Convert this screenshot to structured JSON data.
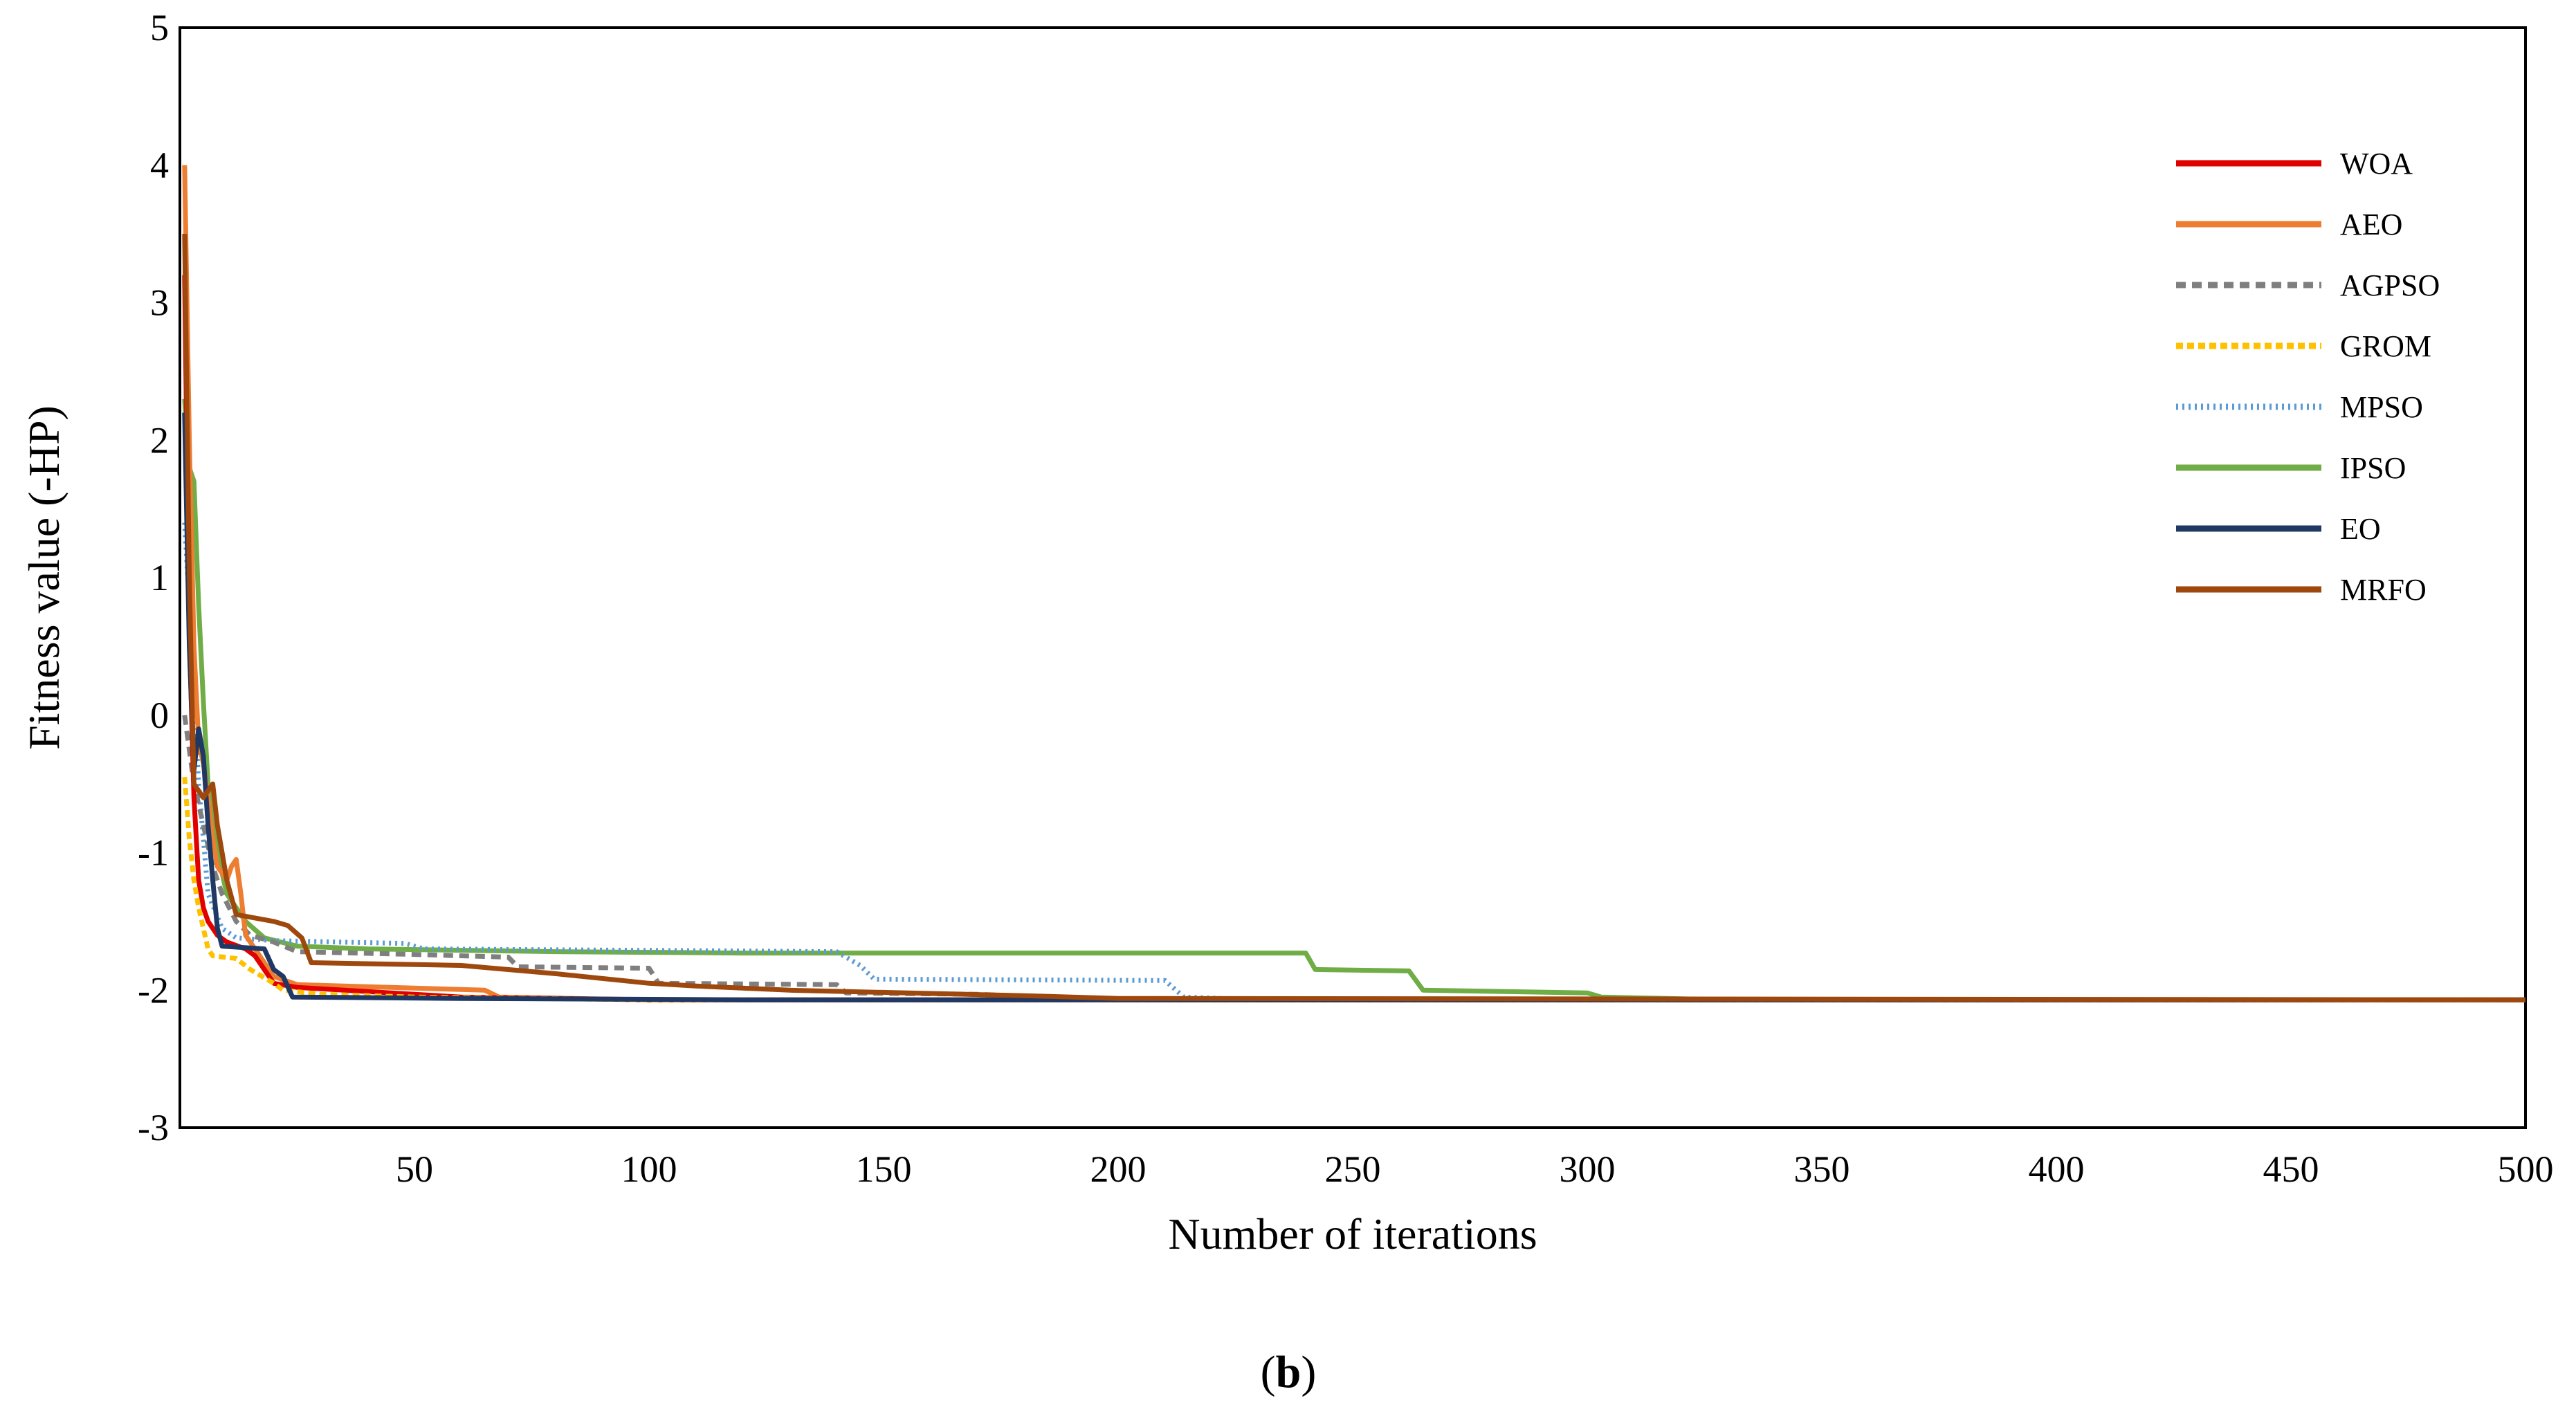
{
  "caption": {
    "open": "(",
    "letter": "b",
    "close": ")"
  },
  "chart_data": {
    "type": "line",
    "title": "",
    "xlabel": "Number of iterations",
    "ylabel": "Fitness value (-HP)",
    "xlim": [
      0,
      500
    ],
    "ylim": [
      -3,
      5
    ],
    "xticks": [
      50,
      100,
      150,
      200,
      250,
      300,
      350,
      400,
      450,
      500
    ],
    "yticks": [
      5,
      4,
      3,
      2,
      1,
      0,
      -1,
      -2,
      -3
    ],
    "grid": false,
    "legend_position": "top-right",
    "series": [
      {
        "name": "WOA",
        "color": "#e00000",
        "dash": "solid",
        "points": [
          [
            1,
            3.2
          ],
          [
            2,
            0.6
          ],
          [
            3,
            -0.6
          ],
          [
            4,
            -1.2
          ],
          [
            5,
            -1.4
          ],
          [
            6,
            -1.5
          ],
          [
            8,
            -1.6
          ],
          [
            10,
            -1.65
          ],
          [
            14,
            -1.7
          ],
          [
            16,
            -1.75
          ],
          [
            18,
            -1.85
          ],
          [
            20,
            -1.95
          ],
          [
            25,
            -1.98
          ],
          [
            35,
            -2.0
          ],
          [
            45,
            -2.02
          ],
          [
            60,
            -2.05
          ],
          [
            100,
            -2.07
          ],
          [
            500,
            -2.07
          ]
        ]
      },
      {
        "name": "AEO",
        "color": "#ed7d31",
        "dash": "solid",
        "points": [
          [
            1,
            4.0
          ],
          [
            2,
            2.0
          ],
          [
            3,
            0.5
          ],
          [
            4,
            -0.2
          ],
          [
            5,
            -0.35
          ],
          [
            6,
            -0.6
          ],
          [
            7,
            -0.9
          ],
          [
            8,
            -1.1
          ],
          [
            9,
            -1.15
          ],
          [
            10,
            -1.2
          ],
          [
            11,
            -1.1
          ],
          [
            12,
            -1.05
          ],
          [
            13,
            -1.3
          ],
          [
            14,
            -1.6
          ],
          [
            16,
            -1.7
          ],
          [
            18,
            -1.8
          ],
          [
            20,
            -1.9
          ],
          [
            25,
            -1.96
          ],
          [
            45,
            -1.98
          ],
          [
            65,
            -2.0
          ],
          [
            68,
            -2.05
          ],
          [
            100,
            -2.07
          ],
          [
            500,
            -2.07
          ]
        ]
      },
      {
        "name": "AGPSO",
        "color": "#7f7f7f",
        "dash": "14,9",
        "points": [
          [
            1,
            0.0
          ],
          [
            3,
            -0.5
          ],
          [
            5,
            -0.8
          ],
          [
            7,
            -1.1
          ],
          [
            9,
            -1.3
          ],
          [
            12,
            -1.5
          ],
          [
            15,
            -1.6
          ],
          [
            20,
            -1.65
          ],
          [
            25,
            -1.72
          ],
          [
            50,
            -1.74
          ],
          [
            70,
            -1.76
          ],
          [
            72,
            -1.83
          ],
          [
            100,
            -1.84
          ],
          [
            102,
            -1.95
          ],
          [
            140,
            -1.96
          ],
          [
            142,
            -2.02
          ],
          [
            170,
            -2.03
          ],
          [
            200,
            -2.07
          ],
          [
            500,
            -2.07
          ]
        ]
      },
      {
        "name": "GROM",
        "color": "#ffc000",
        "dash": "10,6",
        "points": [
          [
            1,
            -0.45
          ],
          [
            2,
            -0.9
          ],
          [
            3,
            -1.2
          ],
          [
            4,
            -1.4
          ],
          [
            5,
            -1.55
          ],
          [
            6,
            -1.7
          ],
          [
            7,
            -1.75
          ],
          [
            12,
            -1.77
          ],
          [
            15,
            -1.85
          ],
          [
            20,
            -1.95
          ],
          [
            22,
            -2.0
          ],
          [
            30,
            -2.03
          ],
          [
            50,
            -2.05
          ],
          [
            100,
            -2.07
          ],
          [
            500,
            -2.07
          ]
        ]
      },
      {
        "name": "MPSO",
        "color": "#5b9bd5",
        "dash": "3,6",
        "points": [
          [
            1,
            1.4
          ],
          [
            2,
            0.8
          ],
          [
            4,
            -0.5
          ],
          [
            6,
            -1.3
          ],
          [
            9,
            -1.55
          ],
          [
            12,
            -1.62
          ],
          [
            20,
            -1.64
          ],
          [
            48,
            -1.66
          ],
          [
            52,
            -1.7
          ],
          [
            140,
            -1.72
          ],
          [
            145,
            -1.82
          ],
          [
            148,
            -1.92
          ],
          [
            210,
            -1.93
          ],
          [
            214,
            -2.05
          ],
          [
            230,
            -2.07
          ],
          [
            500,
            -2.07
          ]
        ]
      },
      {
        "name": "IPSO",
        "color": "#70ad47",
        "dash": "solid",
        "points": [
          [
            1,
            2.3
          ],
          [
            2,
            1.8
          ],
          [
            3,
            1.7
          ],
          [
            4,
            0.8
          ],
          [
            5,
            0.1
          ],
          [
            6,
            -0.5
          ],
          [
            8,
            -1.0
          ],
          [
            10,
            -1.3
          ],
          [
            14,
            -1.5
          ],
          [
            18,
            -1.62
          ],
          [
            25,
            -1.68
          ],
          [
            40,
            -1.7
          ],
          [
            80,
            -1.72
          ],
          [
            120,
            -1.73
          ],
          [
            240,
            -1.73
          ],
          [
            242,
            -1.85
          ],
          [
            262,
            -1.86
          ],
          [
            265,
            -2.0
          ],
          [
            300,
            -2.02
          ],
          [
            303,
            -2.05
          ],
          [
            330,
            -2.07
          ],
          [
            500,
            -2.07
          ]
        ]
      },
      {
        "name": "EO",
        "color": "#1f3864",
        "dash": "solid",
        "points": [
          [
            1,
            2.2
          ],
          [
            2,
            0.5
          ],
          [
            3,
            -0.4
          ],
          [
            4,
            -0.1
          ],
          [
            5,
            -0.3
          ],
          [
            6,
            -0.8
          ],
          [
            7,
            -1.2
          ],
          [
            8,
            -1.55
          ],
          [
            9,
            -1.68
          ],
          [
            18,
            -1.7
          ],
          [
            20,
            -1.85
          ],
          [
            22,
            -1.9
          ],
          [
            24,
            -2.05
          ],
          [
            60,
            -2.06
          ],
          [
            120,
            -2.07
          ],
          [
            500,
            -2.07
          ]
        ]
      },
      {
        "name": "MRFO",
        "color": "#9e480e",
        "dash": "solid",
        "points": [
          [
            1,
            3.5
          ],
          [
            2,
            1.0
          ],
          [
            3,
            -0.5
          ],
          [
            5,
            -0.6
          ],
          [
            7,
            -0.5
          ],
          [
            8,
            -0.8
          ],
          [
            9,
            -1.0
          ],
          [
            10,
            -1.2
          ],
          [
            12,
            -1.45
          ],
          [
            20,
            -1.5
          ],
          [
            23,
            -1.53
          ],
          [
            26,
            -1.62
          ],
          [
            28,
            -1.8
          ],
          [
            60,
            -1.82
          ],
          [
            80,
            -1.88
          ],
          [
            100,
            -1.95
          ],
          [
            110,
            -1.97
          ],
          [
            130,
            -2.0
          ],
          [
            180,
            -2.04
          ],
          [
            200,
            -2.06
          ],
          [
            500,
            -2.07
          ]
        ]
      }
    ]
  }
}
